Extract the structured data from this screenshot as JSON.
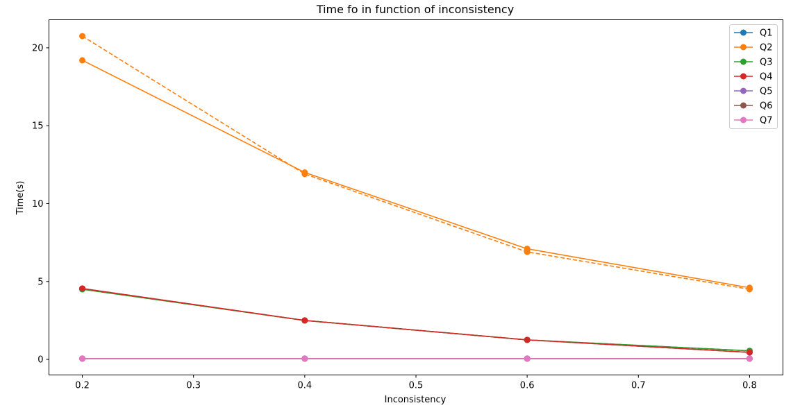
{
  "chart_data": {
    "type": "line",
    "title": "Time fo in function of inconsistency",
    "xlabel": "Inconsistency",
    "ylabel": "Time(s)",
    "xlim": [
      0.17,
      0.83
    ],
    "ylim": [
      -1.0,
      21.8
    ],
    "xticks": [
      {
        "value": 0.2,
        "label": "0.2"
      },
      {
        "value": 0.3,
        "label": "0.3"
      },
      {
        "value": 0.4,
        "label": "0.4"
      },
      {
        "value": 0.5,
        "label": "0.5"
      },
      {
        "value": 0.6,
        "label": "0.6"
      },
      {
        "value": 0.7,
        "label": "0.7"
      },
      {
        "value": 0.8,
        "label": "0.8"
      }
    ],
    "yticks": [
      {
        "value": 0,
        "label": "0"
      },
      {
        "value": 5,
        "label": "5"
      },
      {
        "value": 10,
        "label": "10"
      },
      {
        "value": 15,
        "label": "15"
      },
      {
        "value": 20,
        "label": "20"
      }
    ],
    "grid": false,
    "legend_position": "top-right",
    "x": [
      0.2,
      0.4,
      0.6,
      0.8
    ],
    "series": [
      {
        "name": "Q1",
        "color": "#1f77b4",
        "style": "solid",
        "legend": true,
        "values": [
          0.05,
          0.05,
          0.05,
          0.05
        ]
      },
      {
        "name": "Q2",
        "color": "#ff7f0e",
        "style": "solid",
        "legend": true,
        "values": [
          19.2,
          12.0,
          7.1,
          4.6
        ]
      },
      {
        "name": "Q3",
        "color": "#2ca02c",
        "style": "solid",
        "legend": true,
        "values": [
          4.5,
          2.5,
          1.25,
          0.55
        ]
      },
      {
        "name": "Q4",
        "color": "#d62728",
        "style": "solid",
        "legend": true,
        "values": [
          4.55,
          2.5,
          1.25,
          0.45
        ]
      },
      {
        "name": "Q5",
        "color": "#9467bd",
        "style": "solid",
        "legend": true,
        "values": [
          0.05,
          0.05,
          0.05,
          0.05
        ]
      },
      {
        "name": "Q6",
        "color": "#8c564b",
        "style": "solid",
        "legend": true,
        "values": [
          0.05,
          0.05,
          0.05,
          0.05
        ]
      },
      {
        "name": "Q7",
        "color": "#e377c2",
        "style": "solid",
        "legend": true,
        "values": [
          0.05,
          0.05,
          0.05,
          0.05
        ]
      },
      {
        "color": "#ff7f0e",
        "style": "dashed",
        "legend": false,
        "values": [
          20.75,
          11.9,
          6.9,
          4.5
        ]
      },
      {
        "color": "#2ca02c",
        "style": "dashed",
        "legend": false,
        "values": [
          4.5,
          2.5,
          1.25,
          0.55
        ]
      },
      {
        "color": "#d62728",
        "style": "dashed",
        "legend": false,
        "values": [
          4.55,
          2.5,
          1.25,
          0.45
        ]
      }
    ]
  }
}
